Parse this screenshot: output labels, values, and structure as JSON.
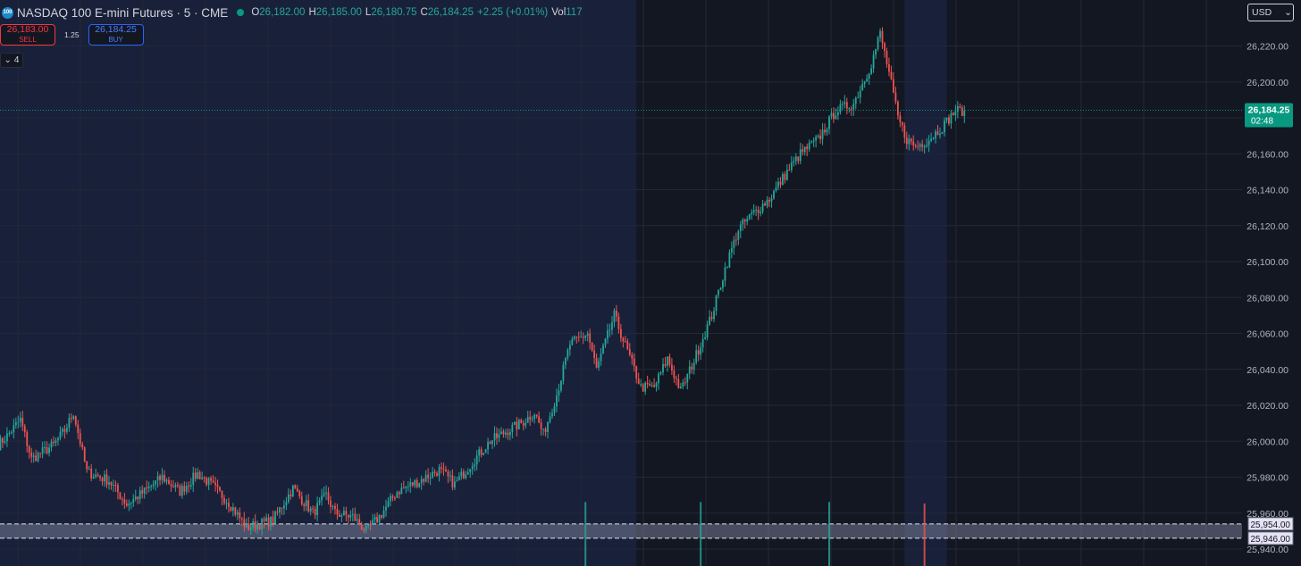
{
  "symbol": {
    "logo": "100",
    "title": "NASDAQ 100 E-mini Futures · 5 · CME",
    "ohlc": [
      {
        "k": "O",
        "v": "26,182.00"
      },
      {
        "k": "H",
        "v": "26,185.00"
      },
      {
        "k": "L",
        "v": "26,180.75"
      },
      {
        "k": "C",
        "v": "26,184.25"
      },
      {
        "k": "",
        "v": "+2.25 (+0.01%)"
      },
      {
        "k": "Vol",
        "v": "117"
      }
    ]
  },
  "trade": {
    "sell_price": "26,183.00",
    "sell_label": "SELL",
    "spread": "1.25",
    "buy_price": "26,184.25",
    "buy_label": "BUY"
  },
  "indicators_toggle": "4",
  "currency": "USD",
  "colors": {
    "up": "#26a69a",
    "down": "#ef5350",
    "background": "#131722",
    "session": "#19213a",
    "last_price": "#089981"
  },
  "chart_data": {
    "type": "candlestick",
    "ylim": [
      25935,
      26235
    ],
    "y_ticks": [
      25940,
      25960,
      25980,
      26000,
      26020,
      26040,
      26060,
      26080,
      26100,
      26120,
      26140,
      26160,
      26180,
      26200,
      26220
    ],
    "y_tick_labels": [
      "25,940.00",
      "25,960.00",
      "25,980.00",
      "26,000.00",
      "26,020.00",
      "26,040.00",
      "26,060.00",
      "26,080.00",
      "26,100.00",
      "26,120.00",
      "26,140.00",
      "26,160.00",
      "26,180.00",
      "26,200.00",
      "26,220.00"
    ],
    "waypoints": [
      [
        0,
        25998
      ],
      [
        4,
        26003
      ],
      [
        10,
        26012
      ],
      [
        15,
        25990
      ],
      [
        25,
        25998
      ],
      [
        30,
        26006
      ],
      [
        34,
        26016
      ],
      [
        40,
        25983
      ],
      [
        50,
        25978
      ],
      [
        58,
        25965
      ],
      [
        66,
        25972
      ],
      [
        74,
        25980
      ],
      [
        82,
        25972
      ],
      [
        90,
        25982
      ],
      [
        95,
        25977
      ],
      [
        104,
        25966
      ],
      [
        112,
        25952
      ],
      [
        124,
        25956
      ],
      [
        133,
        25974
      ],
      [
        142,
        25960
      ],
      [
        148,
        25970
      ],
      [
        152,
        25960
      ],
      [
        160,
        25958
      ],
      [
        166,
        25950
      ],
      [
        172,
        25958
      ],
      [
        180,
        25972
      ],
      [
        190,
        25978
      ],
      [
        199,
        25984
      ],
      [
        206,
        25976
      ],
      [
        215,
        25990
      ],
      [
        222,
        26000
      ],
      [
        230,
        26006
      ],
      [
        236,
        26010
      ],
      [
        242,
        26016
      ],
      [
        246,
        26004
      ],
      [
        252,
        26026
      ],
      [
        258,
        26054
      ],
      [
        266,
        26060
      ],
      [
        270,
        26040
      ],
      [
        278,
        26070
      ],
      [
        284,
        26050
      ],
      [
        290,
        26030
      ],
      [
        296,
        26030
      ],
      [
        302,
        26046
      ],
      [
        308,
        26028
      ],
      [
        314,
        26045
      ],
      [
        322,
        26070
      ],
      [
        328,
        26096
      ],
      [
        334,
        26118
      ],
      [
        340,
        26126
      ],
      [
        348,
        26135
      ],
      [
        356,
        26150
      ],
      [
        362,
        26160
      ],
      [
        370,
        26168
      ],
      [
        378,
        26184
      ],
      [
        386,
        26188
      ],
      [
        394,
        26210
      ],
      [
        398,
        26227
      ],
      [
        402,
        26205
      ],
      [
        406,
        26180
      ],
      [
        410,
        26168
      ],
      [
        414,
        26164
      ],
      [
        420,
        26168
      ],
      [
        426,
        26175
      ],
      [
        432,
        26184
      ],
      [
        436,
        26184
      ]
    ],
    "volume_spikes": [
      {
        "t": 265,
        "v": 430
      },
      {
        "t": 317,
        "v": 430
      },
      {
        "t": 375,
        "v": 430
      },
      {
        "t": 418,
        "v": 420
      }
    ],
    "last_price": "26,184.25",
    "countdown": "02:48",
    "zone": {
      "upper": 25954.0,
      "lower": 25946.0,
      "upper_label": "25,954.00",
      "lower_label": "25,946.00"
    },
    "sessions": [
      {
        "from": 0,
        "to": 288,
        "style": "highlight"
      },
      {
        "from": 288,
        "to": 409,
        "style": "plain"
      },
      {
        "from": 409,
        "to": 428,
        "style": "highlight"
      }
    ]
  }
}
